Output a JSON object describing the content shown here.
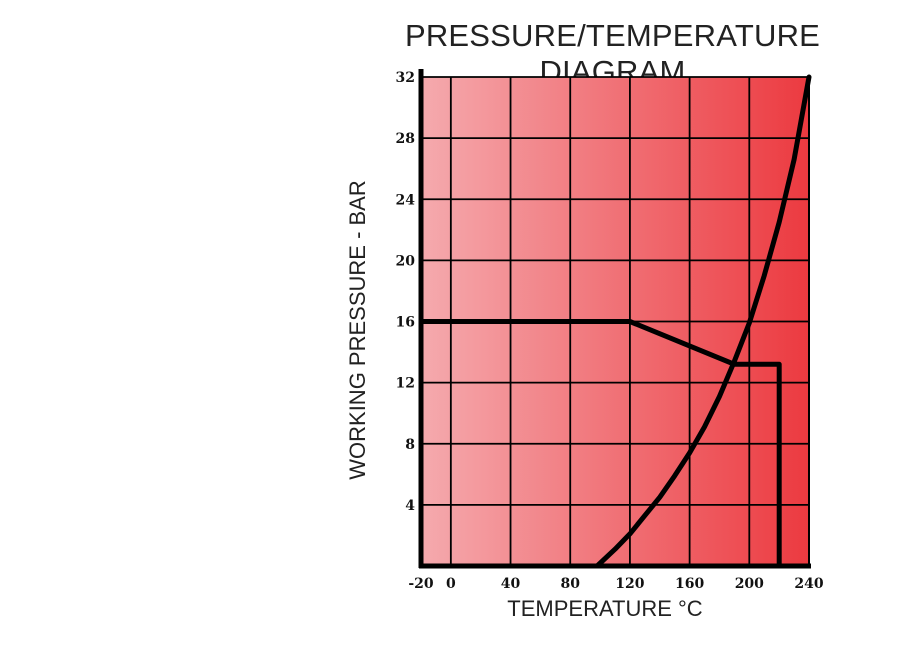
{
  "chart_data": {
    "type": "line",
    "title": "PRESSURE/TEMPERATURE DIAGRAM",
    "xlabel": "TEMPERATURE °C",
    "ylabel": "WORKING PRESSURE - BAR",
    "xlim": [
      -20,
      240
    ],
    "ylim": [
      0,
      32
    ],
    "x_ticks": [
      -20,
      0,
      40,
      80,
      120,
      160,
      200,
      240
    ],
    "x_tick_labels": [
      "-20",
      "0",
      "40",
      "80",
      "120",
      "160",
      "200",
      "240"
    ],
    "y_ticks": [
      4,
      8,
      12,
      16,
      20,
      24,
      28,
      32
    ],
    "y_tick_labels": [
      "4",
      "8",
      "12",
      "16",
      "20",
      "24",
      "28",
      "32"
    ],
    "grid": true,
    "background": "red gradient, light on left to dark on right",
    "colors": {
      "bg_light": "#f5aaae",
      "bg_dark": "#ec3a40",
      "line": "#000000"
    },
    "series": [
      {
        "values_x": [
          -20,
          120,
          190,
          220,
          220
        ],
        "values_y": [
          16,
          16,
          13.2,
          13.2,
          0
        ]
      },
      {
        "values_x": [
          98,
          110,
          120,
          130,
          140,
          150,
          160,
          170,
          180,
          190,
          200,
          210,
          220,
          230,
          240
        ],
        "values_y": [
          0,
          1.1,
          2.1,
          3.3,
          4.5,
          5.9,
          7.4,
          9.1,
          11.1,
          13.4,
          15.9,
          19.0,
          22.5,
          26.6,
          32
        ]
      }
    ]
  }
}
